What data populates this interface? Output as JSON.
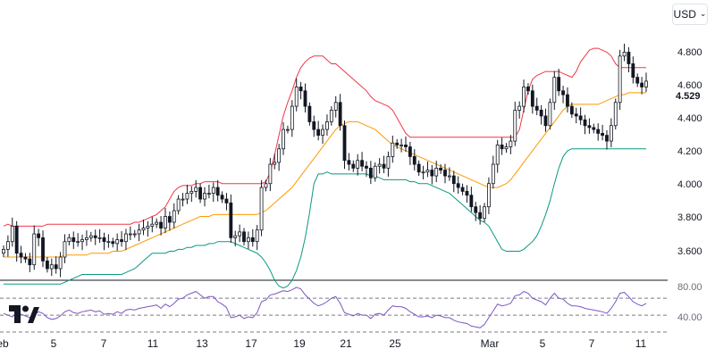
{
  "toolbar": {
    "currency_label": "USD",
    "currency_icon": "chevron-down-icon"
  },
  "price_scale": {
    "labels": [
      "4.800",
      "4.600",
      "4.400",
      "4.200",
      "4.000",
      "3.800",
      "3.600"
    ],
    "last_price": "4.529"
  },
  "indicator_scale": {
    "labels": [
      "80.00",
      "40.00"
    ]
  },
  "time_axis": {
    "labels": [
      "eb",
      "5",
      "7",
      "11",
      "13",
      "17",
      "19",
      "21",
      "25",
      "Mar",
      "5",
      "7",
      "11"
    ]
  },
  "logo": {
    "name": "tradingview-logo"
  },
  "colors": {
    "candle": "#131722",
    "bollinger_upper": "#f23645",
    "bollinger_mid": "#ff9800",
    "bollinger_lower": "#089981",
    "rsi": "#7e57c2",
    "grid_dash": "#787b86",
    "separator": "#131722"
  },
  "chart_data": [
    {
      "type": "candlestick",
      "ylim": [
        3.5,
        4.95
      ],
      "closes": [
        3.66,
        3.7,
        3.78,
        3.64,
        3.62,
        3.61,
        3.58,
        3.74,
        3.72,
        3.6,
        3.56,
        3.58,
        3.56,
        3.62,
        3.7,
        3.72,
        3.7,
        3.7,
        3.71,
        3.72,
        3.73,
        3.72,
        3.72,
        3.7,
        3.7,
        3.69,
        3.71,
        3.7,
        3.74,
        3.74,
        3.74,
        3.76,
        3.77,
        3.78,
        3.79,
        3.8,
        3.77,
        3.83,
        3.8,
        3.86,
        3.92,
        3.92,
        3.95,
        3.96,
        3.98,
        3.92,
        3.95,
        3.95,
        3.98,
        3.94,
        3.92,
        3.9,
        3.72,
        3.73,
        3.75,
        3.7,
        3.72,
        3.7,
        3.76,
        3.98,
        4.0,
        4.1,
        4.11,
        4.18,
        4.28,
        4.28,
        4.4,
        4.5,
        4.48,
        4.4,
        4.32,
        4.28,
        4.25,
        4.28,
        4.32,
        4.38,
        4.42,
        4.3,
        4.12,
        4.1,
        4.08,
        4.12,
        4.09,
        4.08,
        4.03,
        4.09,
        4.1,
        4.08,
        4.14,
        4.21,
        4.2,
        4.2,
        4.19,
        4.14,
        4.1,
        4.06,
        4.06,
        4.07,
        4.04,
        4.08,
        4.07,
        4.04,
        4.04,
        4.0,
        3.98,
        3.96,
        3.94,
        3.88,
        3.85,
        3.82,
        3.88,
        4.0,
        4.1,
        4.2,
        4.18,
        4.19,
        4.22,
        4.38,
        4.4,
        4.5,
        4.48,
        4.4,
        4.38,
        4.35,
        4.3,
        4.42,
        4.55,
        4.48,
        4.46,
        4.4,
        4.36,
        4.35,
        4.33,
        4.3,
        4.29,
        4.28,
        4.26,
        4.25,
        4.22,
        4.3,
        4.42,
        4.66,
        4.68,
        4.62,
        4.55,
        4.52,
        4.5,
        4.53
      ],
      "bollinger": {
        "upper": [
          3.78,
          3.79,
          3.78,
          3.78,
          3.78,
          3.78,
          3.78,
          3.78,
          3.78,
          3.78,
          3.79,
          3.79,
          3.79,
          3.79,
          3.79,
          3.79,
          3.79,
          3.79,
          3.79,
          3.79,
          3.79,
          3.79,
          3.79,
          3.79,
          3.79,
          3.79,
          3.79,
          3.79,
          3.79,
          3.79,
          3.8,
          3.8,
          3.81,
          3.82,
          3.83,
          3.84,
          3.86,
          3.88,
          3.92,
          3.96,
          3.98,
          3.99,
          3.99,
          3.99,
          4.0,
          4.0,
          4.01,
          4.01,
          4.01,
          4.01,
          4.0,
          4.0,
          4.0,
          4.0,
          4.0,
          4.0,
          4.0,
          4.0,
          4.0,
          4.0,
          4.01,
          4.06,
          4.15,
          4.25,
          4.35,
          4.42,
          4.48,
          4.55,
          4.6,
          4.63,
          4.65,
          4.66,
          4.66,
          4.66,
          4.64,
          4.62,
          4.62,
          4.6,
          4.58,
          4.56,
          4.54,
          4.52,
          4.5,
          4.48,
          4.45,
          4.43,
          4.42,
          4.41,
          4.4,
          4.38,
          4.34,
          4.3,
          4.26,
          4.24,
          4.24,
          4.24,
          4.24,
          4.24,
          4.24,
          4.24,
          4.24,
          4.24,
          4.24,
          4.24,
          4.24,
          4.24,
          4.24,
          4.24,
          4.24,
          4.24,
          4.24,
          4.24,
          4.24,
          4.24,
          4.24,
          4.24,
          4.24,
          4.24,
          4.28,
          4.38,
          4.48,
          4.54,
          4.56,
          4.57,
          4.58,
          4.58,
          4.58,
          4.58,
          4.57,
          4.56,
          4.55,
          4.58,
          4.63,
          4.66,
          4.69,
          4.7,
          4.7,
          4.69,
          4.68,
          4.66,
          4.62,
          4.6,
          4.6,
          4.6,
          4.6,
          4.6,
          4.6,
          4.6
        ],
        "mid": [
          3.62,
          3.62,
          3.62,
          3.62,
          3.62,
          3.62,
          3.62,
          3.62,
          3.62,
          3.62,
          3.62,
          3.62,
          3.62,
          3.62,
          3.63,
          3.63,
          3.63,
          3.63,
          3.63,
          3.63,
          3.64,
          3.64,
          3.64,
          3.64,
          3.64,
          3.65,
          3.65,
          3.65,
          3.66,
          3.67,
          3.68,
          3.69,
          3.7,
          3.71,
          3.72,
          3.73,
          3.74,
          3.75,
          3.76,
          3.77,
          3.78,
          3.79,
          3.8,
          3.81,
          3.82,
          3.83,
          3.83,
          3.83,
          3.84,
          3.84,
          3.84,
          3.84,
          3.84,
          3.84,
          3.84,
          3.84,
          3.84,
          3.84,
          3.84,
          3.85,
          3.86,
          3.88,
          3.9,
          3.92,
          3.94,
          3.96,
          3.98,
          4.01,
          4.04,
          4.07,
          4.1,
          4.13,
          4.16,
          4.19,
          4.22,
          4.25,
          4.28,
          4.3,
          4.31,
          4.32,
          4.32,
          4.32,
          4.31,
          4.3,
          4.29,
          4.28,
          4.26,
          4.24,
          4.22,
          4.2,
          4.19,
          4.18,
          4.17,
          4.16,
          4.15,
          4.14,
          4.13,
          4.12,
          4.11,
          4.1,
          4.09,
          4.08,
          4.07,
          4.06,
          4.05,
          4.04,
          4.03,
          4.02,
          4.01,
          4.0,
          3.99,
          3.98,
          3.98,
          3.98,
          3.99,
          4.0,
          4.02,
          4.05,
          4.08,
          4.11,
          4.14,
          4.17,
          4.2,
          4.23,
          4.26,
          4.29,
          4.32,
          4.35,
          4.38,
          4.4,
          4.41,
          4.41,
          4.41,
          4.41,
          4.41,
          4.41,
          4.41,
          4.42,
          4.43,
          4.44,
          4.45,
          4.46,
          4.46,
          4.47,
          4.47,
          4.47,
          4.47,
          4.47
        ],
        "lower": [
          3.48,
          3.48,
          3.48,
          3.48,
          3.48,
          3.48,
          3.48,
          3.48,
          3.48,
          3.48,
          3.48,
          3.48,
          3.48,
          3.48,
          3.49,
          3.5,
          3.51,
          3.52,
          3.53,
          3.53,
          3.53,
          3.53,
          3.53,
          3.53,
          3.53,
          3.53,
          3.53,
          3.53,
          3.54,
          3.55,
          3.56,
          3.58,
          3.6,
          3.62,
          3.64,
          3.64,
          3.64,
          3.64,
          3.65,
          3.65,
          3.66,
          3.66,
          3.67,
          3.67,
          3.68,
          3.68,
          3.68,
          3.69,
          3.69,
          3.7,
          3.7,
          3.7,
          3.7,
          3.69,
          3.68,
          3.67,
          3.66,
          3.65,
          3.64,
          3.62,
          3.59,
          3.55,
          3.5,
          3.47,
          3.46,
          3.47,
          3.5,
          3.55,
          3.62,
          3.72,
          3.85,
          4.0,
          4.05,
          4.05,
          4.06,
          4.05,
          4.05,
          4.05,
          4.05,
          4.05,
          4.05,
          4.05,
          4.05,
          4.05,
          4.04,
          4.04,
          4.03,
          4.02,
          4.02,
          4.02,
          4.02,
          4.02,
          4.02,
          4.01,
          4.01,
          4.0,
          4.0,
          4.0,
          3.99,
          3.98,
          3.97,
          3.96,
          3.95,
          3.93,
          3.91,
          3.89,
          3.87,
          3.85,
          3.83,
          3.81,
          3.8,
          3.78,
          3.74,
          3.7,
          3.66,
          3.65,
          3.65,
          3.65,
          3.65,
          3.66,
          3.68,
          3.7,
          3.73,
          3.78,
          3.84,
          3.91,
          4.0,
          4.08,
          4.14,
          4.17,
          4.18,
          4.18,
          4.18,
          4.18,
          4.18,
          4.18,
          4.18,
          4.18,
          4.18,
          4.18,
          4.18,
          4.18,
          4.18,
          4.18,
          4.18,
          4.18,
          4.18,
          4.18
        ]
      }
    },
    {
      "type": "line",
      "name": "RSI",
      "ylim": [
        30,
        85
      ],
      "bands": [
        70,
        50,
        30
      ],
      "values": [
        52,
        50,
        48,
        53,
        51,
        49,
        47,
        50,
        54,
        52,
        47,
        45,
        46,
        49,
        54,
        56,
        53,
        52,
        54,
        55,
        56,
        54,
        55,
        51,
        52,
        51,
        54,
        52,
        56,
        57,
        56,
        58,
        59,
        60,
        61,
        62,
        58,
        63,
        60,
        64,
        69,
        70,
        74,
        76,
        78,
        74,
        70,
        72,
        72,
        66,
        63,
        59,
        47,
        48,
        50,
        46,
        48,
        47,
        53,
        66,
        68,
        74,
        75,
        77,
        79,
        78,
        80,
        83,
        81,
        74,
        69,
        64,
        61,
        63,
        66,
        70,
        72,
        64,
        53,
        51,
        49,
        52,
        50,
        50,
        46,
        51,
        52,
        50,
        56,
        61,
        60,
        60,
        58,
        54,
        51,
        48,
        48,
        49,
        47,
        50,
        49,
        47,
        47,
        44,
        42,
        41,
        40,
        37,
        36,
        35,
        39,
        47,
        55,
        63,
        61,
        62,
        64,
        73,
        74,
        78,
        76,
        70,
        68,
        66,
        62,
        70,
        76,
        70,
        69,
        64,
        61,
        61,
        60,
        58,
        57,
        56,
        55,
        54,
        52,
        58,
        66,
        76,
        77,
        72,
        66,
        63,
        61,
        64
      ]
    }
  ]
}
